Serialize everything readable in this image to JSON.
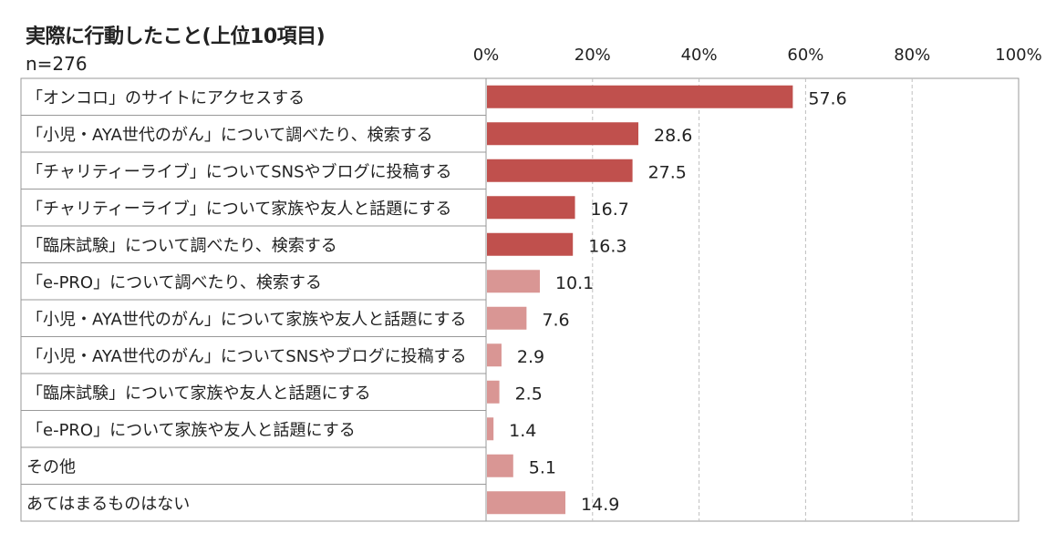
{
  "chart_data": {
    "type": "bar",
    "orientation": "horizontal",
    "title": "実際に行動したこと(上位10項目)",
    "sample_size": "n=276",
    "xlim": [
      0,
      100
    ],
    "ticks": [
      "0%",
      "20%",
      "40%",
      "60%",
      "80%",
      "100%"
    ],
    "tick_values": [
      0,
      20,
      40,
      60,
      80,
      100
    ],
    "grid": "vertical dashed",
    "colors": {
      "top5": "#c0504d",
      "rest": "#d99694",
      "grid": "#bfbfbf",
      "frame": "#999999"
    },
    "categories": [
      "「オンコロ」のサイトにアクセスする",
      "「小児・AYA世代のがん」について調べたり、検索する",
      "「チャリティーライブ」についてSNSやブログに投稿する",
      "「チャリティーライブ」について家族や友人と話題にする",
      "「臨床試験」について調べたり、検索する",
      "「e-PRO」について調べたり、検索する",
      "「小児・AYA世代のがん」について家族や友人と話題にする",
      "「小児・AYA世代のがん」についてSNSやブログに投稿する",
      "「臨床試験」について家族や友人と話題にする",
      "「e-PRO」について家族や友人と話題にする",
      "その他",
      "あてはまるものはない"
    ],
    "values": [
      57.6,
      28.6,
      27.5,
      16.7,
      16.3,
      10.1,
      7.6,
      2.9,
      2.5,
      1.4,
      5.1,
      14.9
    ],
    "value_labels": [
      "57.6",
      "28.6",
      "27.5",
      "16.7",
      "16.3",
      "10.1",
      "7.6",
      "2.9",
      "2.5",
      "1.4",
      "5.1",
      "14.9"
    ],
    "highlight_count": 5
  }
}
